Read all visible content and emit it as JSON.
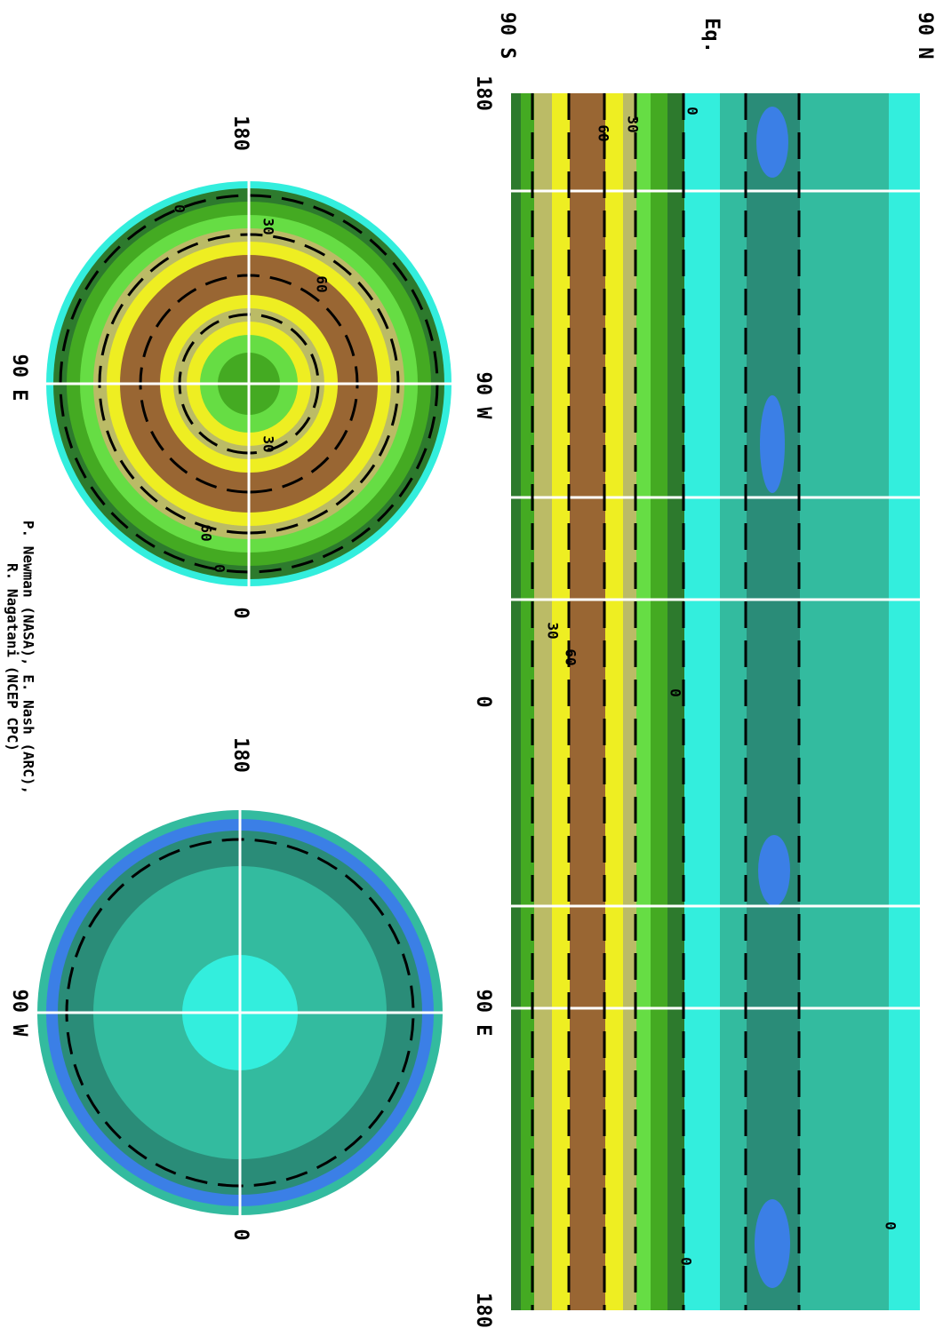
{
  "map": {
    "lat_labels": [
      "90 N",
      "Eq.",
      "90 S"
    ],
    "lon_labels": [
      "180",
      "90 W",
      "0",
      "90 E",
      "180"
    ],
    "contour_labels": [
      "0",
      "30",
      "60",
      "0",
      "30",
      "60",
      "0",
      "0"
    ],
    "south_polar": {
      "labels": [
        "180",
        "90 E",
        "0"
      ],
      "contour_labels": [
        "0",
        "30",
        "60",
        "30",
        "60",
        "0"
      ]
    },
    "north_polar": {
      "labels": [
        "180",
        "90 W",
        "0"
      ]
    },
    "credit": [
      "P. Newman (NASA), E. Nash (ARC),",
      "R. Nagatani (NCEP CPC)"
    ]
  }
}
